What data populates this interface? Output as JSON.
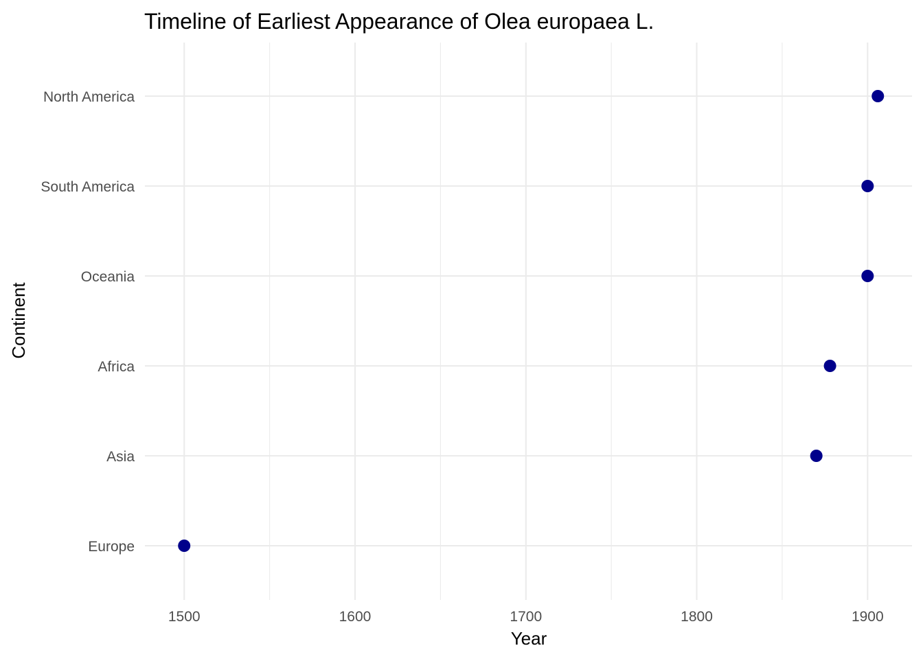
{
  "chart_data": {
    "type": "scatter",
    "title": "Timeline of Earliest Appearance of Olea europaea L.",
    "xlabel": "Year",
    "ylabel": "Continent",
    "xlim": [
      1477,
      1926
    ],
    "x_ticks": [
      1500,
      1600,
      1700,
      1800,
      1900
    ],
    "x_minor_ticks": [
      1550,
      1650,
      1750,
      1850
    ],
    "categories": [
      "Europe",
      "Asia",
      "Africa",
      "Oceania",
      "South America",
      "North America"
    ],
    "points": [
      {
        "category": "Europe",
        "x": 1500
      },
      {
        "category": "Asia",
        "x": 1870
      },
      {
        "category": "Africa",
        "x": 1878
      },
      {
        "category": "Oceania",
        "x": 1900
      },
      {
        "category": "South America",
        "x": 1900
      },
      {
        "category": "North America",
        "x": 1906
      }
    ],
    "grid": true,
    "legend": "none",
    "point_color": "#00008b"
  }
}
